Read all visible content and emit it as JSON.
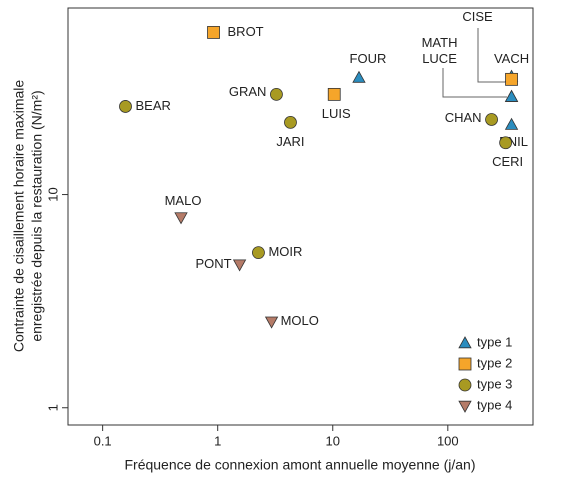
{
  "chart_data": {
    "type": "scatter",
    "x_label": "Fréquence de connexion amont annuelle moyenne (j/an)",
    "y_label": [
      "Contrainte de cisaillement horaire maximale",
      "enregistrée depuis la restauration (N/m²)"
    ],
    "x_scale": "log",
    "y_scale": "log",
    "xlim": [
      0.05,
      550
    ],
    "ylim": [
      0.83,
      75
    ],
    "xticks": [
      0.1,
      1,
      10,
      100
    ],
    "yticks": [
      1,
      10
    ],
    "legend": "lower right",
    "series": [
      {
        "name": "type 1",
        "color": "#2b8dbf",
        "marker": "triangle-up",
        "labels": [
          "FOUR",
          "CISE",
          "MATH",
          "LUCE",
          "ENIL"
        ],
        "x": [
          16.9,
          358,
          358,
          358,
          358
        ],
        "values": [
          35.4,
          35.8,
          28.8,
          28.8,
          21.3
        ]
      },
      {
        "name": "type 2",
        "color": "#f5a52a",
        "marker": "square",
        "labels": [
          "BROT",
          "LUIS",
          "VACH"
        ],
        "x": [
          0.92,
          10.3,
          358
        ],
        "values": [
          57.6,
          29.5,
          34.7
        ]
      },
      {
        "name": "type 3",
        "color": "#a89a22",
        "marker": "circle",
        "labels": [
          "BEAR",
          "GRAN",
          "JARI",
          "CHAN",
          "CERI",
          "MOIR"
        ],
        "x": [
          0.158,
          3.24,
          4.29,
          240,
          318,
          2.26
        ],
        "values": [
          25.9,
          29.5,
          21.8,
          22.5,
          17.5,
          5.34
        ]
      },
      {
        "name": "type 4",
        "color": "#b57b68",
        "marker": "triangle-down",
        "labels": [
          "MALO",
          "PONT",
          "MOLO"
        ],
        "x": [
          0.48,
          1.55,
          2.94
        ],
        "values": [
          7.8,
          4.69,
          2.53
        ]
      }
    ]
  }
}
